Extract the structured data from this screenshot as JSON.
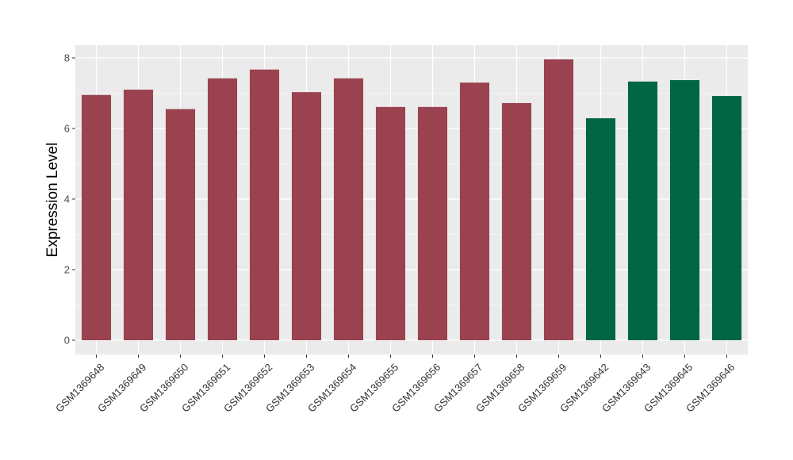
{
  "chart_data": {
    "type": "bar",
    "title": "",
    "xlabel": "",
    "ylabel": "Expression Level",
    "ylim": [
      0,
      8.4
    ],
    "yticks": [
      0,
      2,
      4,
      6,
      8
    ],
    "ytick_labels": [
      "0",
      "2",
      "4",
      "6",
      "8"
    ],
    "grid": true,
    "legend": "none",
    "categories": [
      "GSM1369648",
      "GSM1369649",
      "GSM1369650",
      "GSM1369651",
      "GSM1369652",
      "GSM1369653",
      "GSM1369654",
      "GSM1369655",
      "GSM1369656",
      "GSM1369657",
      "GSM1369658",
      "GSM1369659",
      "GSM1369642",
      "GSM1369643",
      "GSM1369645",
      "GSM1369646"
    ],
    "values": [
      6.95,
      7.1,
      6.55,
      7.42,
      7.67,
      7.03,
      7.42,
      6.61,
      6.61,
      7.3,
      6.72,
      7.96,
      6.29,
      7.33,
      7.37,
      6.92
    ],
    "groups": [
      "a",
      "a",
      "a",
      "a",
      "a",
      "a",
      "a",
      "a",
      "a",
      "a",
      "a",
      "a",
      "b",
      "b",
      "b",
      "b"
    ],
    "colors": {
      "a": "#9a4250",
      "b": "#006644"
    },
    "panel_color": "#ebebeb",
    "grid_color": "#ffffff"
  }
}
